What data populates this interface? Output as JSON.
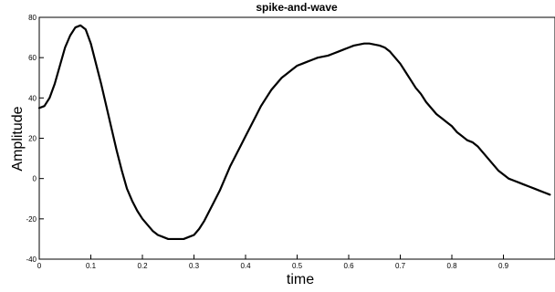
{
  "chart_data": {
    "type": "line",
    "title": "spike-and-wave",
    "xlabel": "time",
    "ylabel": "Amplitude",
    "xlim": [
      0,
      1
    ],
    "ylim": [
      -40,
      80
    ],
    "grid": false,
    "x_ticks": [
      0,
      0.1,
      0.2,
      0.3,
      0.4,
      0.5,
      0.6,
      0.7,
      0.8,
      0.9
    ],
    "x_tick_labels": [
      "0",
      "0.1",
      "0.2",
      "0.3",
      "0.4",
      "0.5",
      "0.6",
      "0.7",
      "0.8",
      "0.9"
    ],
    "y_ticks": [
      -40,
      -20,
      0,
      20,
      40,
      60,
      80
    ],
    "y_tick_labels": [
      "-40",
      "-20",
      "0",
      "20",
      "40",
      "60",
      "80"
    ],
    "series": [
      {
        "color": "#000000",
        "x": [
          0,
          0.01,
          0.02,
          0.03,
          0.04,
          0.05,
          0.06,
          0.07,
          0.08,
          0.09,
          0.1,
          0.11,
          0.12,
          0.13,
          0.14,
          0.15,
          0.16,
          0.17,
          0.18,
          0.19,
          0.2,
          0.21,
          0.22,
          0.23,
          0.24,
          0.25,
          0.26,
          0.27,
          0.28,
          0.29,
          0.3,
          0.31,
          0.32,
          0.33,
          0.34,
          0.35,
          0.36,
          0.37,
          0.38,
          0.39,
          0.4,
          0.41,
          0.42,
          0.43,
          0.44,
          0.45,
          0.46,
          0.47,
          0.48,
          0.49,
          0.5,
          0.51,
          0.52,
          0.53,
          0.54,
          0.55,
          0.56,
          0.57,
          0.58,
          0.59,
          0.6,
          0.61,
          0.62,
          0.63,
          0.64,
          0.65,
          0.66,
          0.67,
          0.68,
          0.69,
          0.7,
          0.71,
          0.72,
          0.73,
          0.74,
          0.75,
          0.76,
          0.77,
          0.78,
          0.79,
          0.8,
          0.81,
          0.82,
          0.83,
          0.84,
          0.85,
          0.86,
          0.87,
          0.88,
          0.89,
          0.9,
          0.91,
          0.92,
          0.93,
          0.94,
          0.95,
          0.96,
          0.97,
          0.98,
          0.99
        ],
        "y": [
          35,
          36,
          40,
          47,
          56,
          65,
          71,
          75,
          76,
          74,
          67,
          57,
          47,
          36,
          25,
          14,
          4,
          -5,
          -11,
          -16,
          -20,
          -23,
          -26,
          -28,
          -29,
          -30,
          -30,
          -30,
          -30,
          -29,
          -28,
          -25,
          -21,
          -16,
          -11,
          -6,
          0,
          6,
          11,
          16,
          21,
          26,
          31,
          36,
          40,
          44,
          47,
          50,
          52,
          54,
          56,
          57,
          58,
          59,
          60,
          60.5,
          61,
          62,
          63,
          64,
          65,
          66,
          66.5,
          67,
          67,
          66.5,
          66,
          65,
          63,
          60,
          57,
          53,
          49,
          45,
          42,
          38,
          35,
          32,
          30,
          28,
          26,
          23,
          21,
          19,
          18,
          16,
          13,
          10,
          7,
          4,
          2,
          0,
          -1,
          -2,
          -3,
          -4,
          -5,
          -6,
          -7,
          -8
        ]
      }
    ]
  }
}
